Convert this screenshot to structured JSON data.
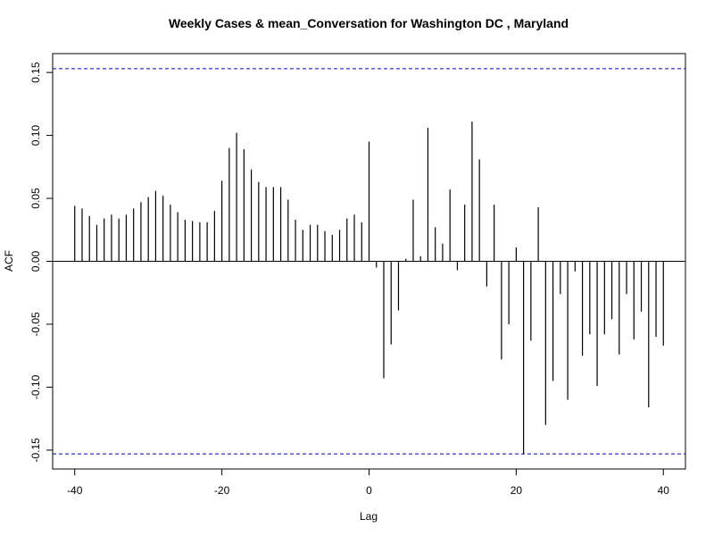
{
  "chart_data": {
    "type": "bar",
    "title": "Weekly Cases & mean_Conversation for Washington DC , Maryland",
    "xlabel": "Lag",
    "ylabel": "ACF",
    "xlim": [
      -43,
      43
    ],
    "ylim": [
      -0.165,
      0.165
    ],
    "x_ticks": [
      -40,
      -20,
      0,
      20,
      40
    ],
    "x_tick_labels": [
      "-40",
      "-20",
      "0",
      "20",
      "40"
    ],
    "y_ticks": [
      -0.15,
      -0.1,
      -0.05,
      0.0,
      0.05,
      0.1,
      0.15
    ],
    "y_tick_labels": [
      "-0.15",
      "-0.10",
      "-0.05",
      "0.00",
      "0.05",
      "0.10",
      "0.15"
    ],
    "confidence_bound": 0.153,
    "colors": {
      "bars": "#000000",
      "bounds": "#0000cd",
      "zero_line": "#000000"
    },
    "lags": [
      -40,
      -39,
      -38,
      -37,
      -36,
      -35,
      -34,
      -33,
      -32,
      -31,
      -30,
      -29,
      -28,
      -27,
      -26,
      -25,
      -24,
      -23,
      -22,
      -21,
      -20,
      -19,
      -18,
      -17,
      -16,
      -15,
      -14,
      -13,
      -12,
      -11,
      -10,
      -9,
      -8,
      -7,
      -6,
      -5,
      -4,
      -3,
      -2,
      -1,
      0,
      1,
      2,
      3,
      4,
      5,
      6,
      7,
      8,
      9,
      10,
      11,
      12,
      13,
      14,
      15,
      16,
      17,
      18,
      19,
      20,
      21,
      22,
      23,
      24,
      25,
      26,
      27,
      28,
      29,
      30,
      31,
      32,
      33,
      34,
      35,
      36,
      37,
      38,
      39,
      40
    ],
    "values": [
      0.044,
      0.042,
      0.036,
      0.029,
      0.034,
      0.037,
      0.034,
      0.037,
      0.042,
      0.047,
      0.051,
      0.056,
      0.052,
      0.045,
      0.039,
      0.033,
      0.032,
      0.031,
      0.031,
      0.04,
      0.064,
      0.09,
      0.102,
      0.089,
      0.073,
      0.063,
      0.059,
      0.059,
      0.059,
      0.049,
      0.033,
      0.025,
      0.029,
      0.029,
      0.024,
      0.021,
      0.025,
      0.034,
      0.037,
      0.031,
      0.095,
      -0.005,
      -0.093,
      -0.066,
      -0.039,
      0.002,
      0.049,
      0.004,
      0.106,
      0.027,
      0.014,
      0.057,
      -0.007,
      0.045,
      0.111,
      0.081,
      -0.02,
      0.045,
      -0.078,
      -0.05,
      0.011,
      -0.153,
      -0.063,
      0.043,
      -0.13,
      -0.095,
      -0.026,
      -0.11,
      -0.008,
      -0.075,
      -0.058,
      -0.099,
      -0.058,
      -0.046,
      -0.074,
      -0.026,
      -0.062,
      -0.04,
      -0.116,
      -0.06,
      -0.067
    ]
  }
}
